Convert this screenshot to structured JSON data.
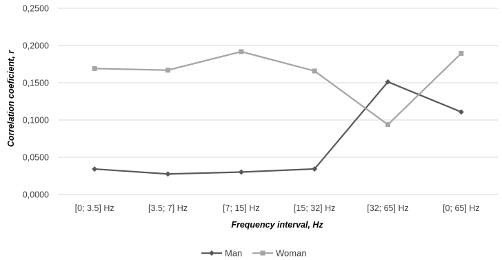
{
  "chart_data": {
    "type": "line",
    "xlabel": "Frequency interval, Hz",
    "ylabel": "Correlation coeficient, r",
    "categories": [
      "[0; 3.5] Hz",
      "[3.5; 7] Hz",
      "[7; 15] Hz",
      "[15; 32] Hz",
      "[32; 65] Hz",
      "[0; 65] Hz"
    ],
    "ylim": [
      0,
      0.25
    ],
    "yticks": [
      {
        "value": 0,
        "label": "0,0000"
      },
      {
        "value": 0.05,
        "label": "0,0500"
      },
      {
        "value": 0.1,
        "label": "0,1000"
      },
      {
        "value": 0.15,
        "label": "0,1500"
      },
      {
        "value": 0.2,
        "label": "0,2000"
      },
      {
        "value": 0.25,
        "label": "0,2500"
      }
    ],
    "grid": true,
    "legend_position": "bottom",
    "series": [
      {
        "name": "Man",
        "color": "#595959",
        "marker": "diamond",
        "values": [
          0.0342,
          0.0275,
          0.0301,
          0.0343,
          0.1512,
          0.1108
        ]
      },
      {
        "name": "Woman",
        "color": "#a5a5a5",
        "marker": "square",
        "values": [
          0.1691,
          0.1669,
          0.1918,
          0.1658,
          0.0938,
          0.1894
        ]
      }
    ]
  }
}
